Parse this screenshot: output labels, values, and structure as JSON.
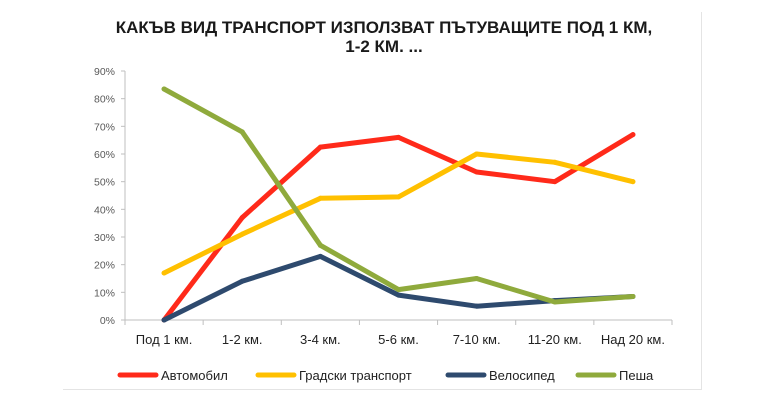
{
  "chart_data": {
    "type": "line",
    "title_lines": [
      "КАКЪВ ВИД ТРАНСПОРТ ИЗПОЛЗВАТ ПЪТУВАЩИТЕ ПОД 1 КМ,",
      "1-2 КМ. ..."
    ],
    "categories": [
      "Под 1 км.",
      "1-2 км.",
      "3-4 км.",
      "5-6 км.",
      "7-10 км.",
      "11-20 км.",
      "Над 20 км."
    ],
    "y_ticks": [
      "0%",
      "10%",
      "20%",
      "30%",
      "40%",
      "50%",
      "60%",
      "70%",
      "80%",
      "90%"
    ],
    "ylim": [
      0,
      90
    ],
    "grid": false,
    "legend_position": "bottom",
    "series": [
      {
        "name": "Автомобил",
        "color": "#ff2a1a",
        "values": [
          0,
          37,
          62.5,
          66,
          53.5,
          50,
          67
        ]
      },
      {
        "name": "Градски транспорт",
        "color": "#ffc000",
        "values": [
          17,
          31,
          44,
          44.5,
          60,
          57,
          50
        ]
      },
      {
        "name": "Велосипед",
        "color": "#2e4a6e",
        "values": [
          0,
          14,
          23,
          9,
          5,
          7,
          8.5
        ]
      },
      {
        "name": "Пеша",
        "color": "#8faa3c",
        "values": [
          83.5,
          68,
          27,
          11,
          15,
          6.5,
          8.5
        ]
      }
    ]
  }
}
